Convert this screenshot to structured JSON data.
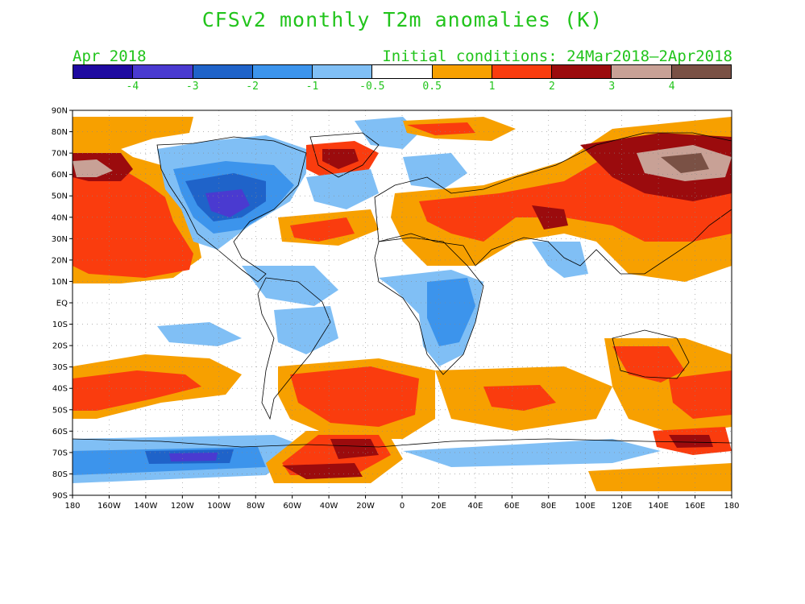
{
  "title": "CFSv2 monthly T2m anomalies (K)",
  "subtitle_left": "Apr 2018",
  "subtitle_right": "Initial conditions: 24Mar2018–2Apr2018",
  "colorbar": {
    "colors": [
      "#1f0aa0",
      "#4a3ad0",
      "#1f63c9",
      "#3c94ec",
      "#80bff5",
      "#ffffff",
      "#f7a000",
      "#fa3c0e",
      "#9b0b0d",
      "#c8a196",
      "#7a5145"
    ],
    "labels": [
      "-4",
      "-3",
      "-2",
      "-1",
      "-0.5",
      "0.5",
      "1",
      "2",
      "3",
      "4"
    ]
  },
  "axes": {
    "lat_labels": [
      "90N",
      "80N",
      "70N",
      "60N",
      "50N",
      "40N",
      "30N",
      "20N",
      "10N",
      "EQ",
      "10S",
      "20S",
      "30S",
      "40S",
      "50S",
      "60S",
      "70S",
      "80S",
      "90S"
    ],
    "lon_labels": [
      "180",
      "160W",
      "140W",
      "120W",
      "100W",
      "80W",
      "60W",
      "40W",
      "20W",
      "0",
      "20E",
      "40E",
      "60E",
      "80E",
      "100E",
      "120E",
      "140E",
      "160E",
      "180"
    ]
  }
}
